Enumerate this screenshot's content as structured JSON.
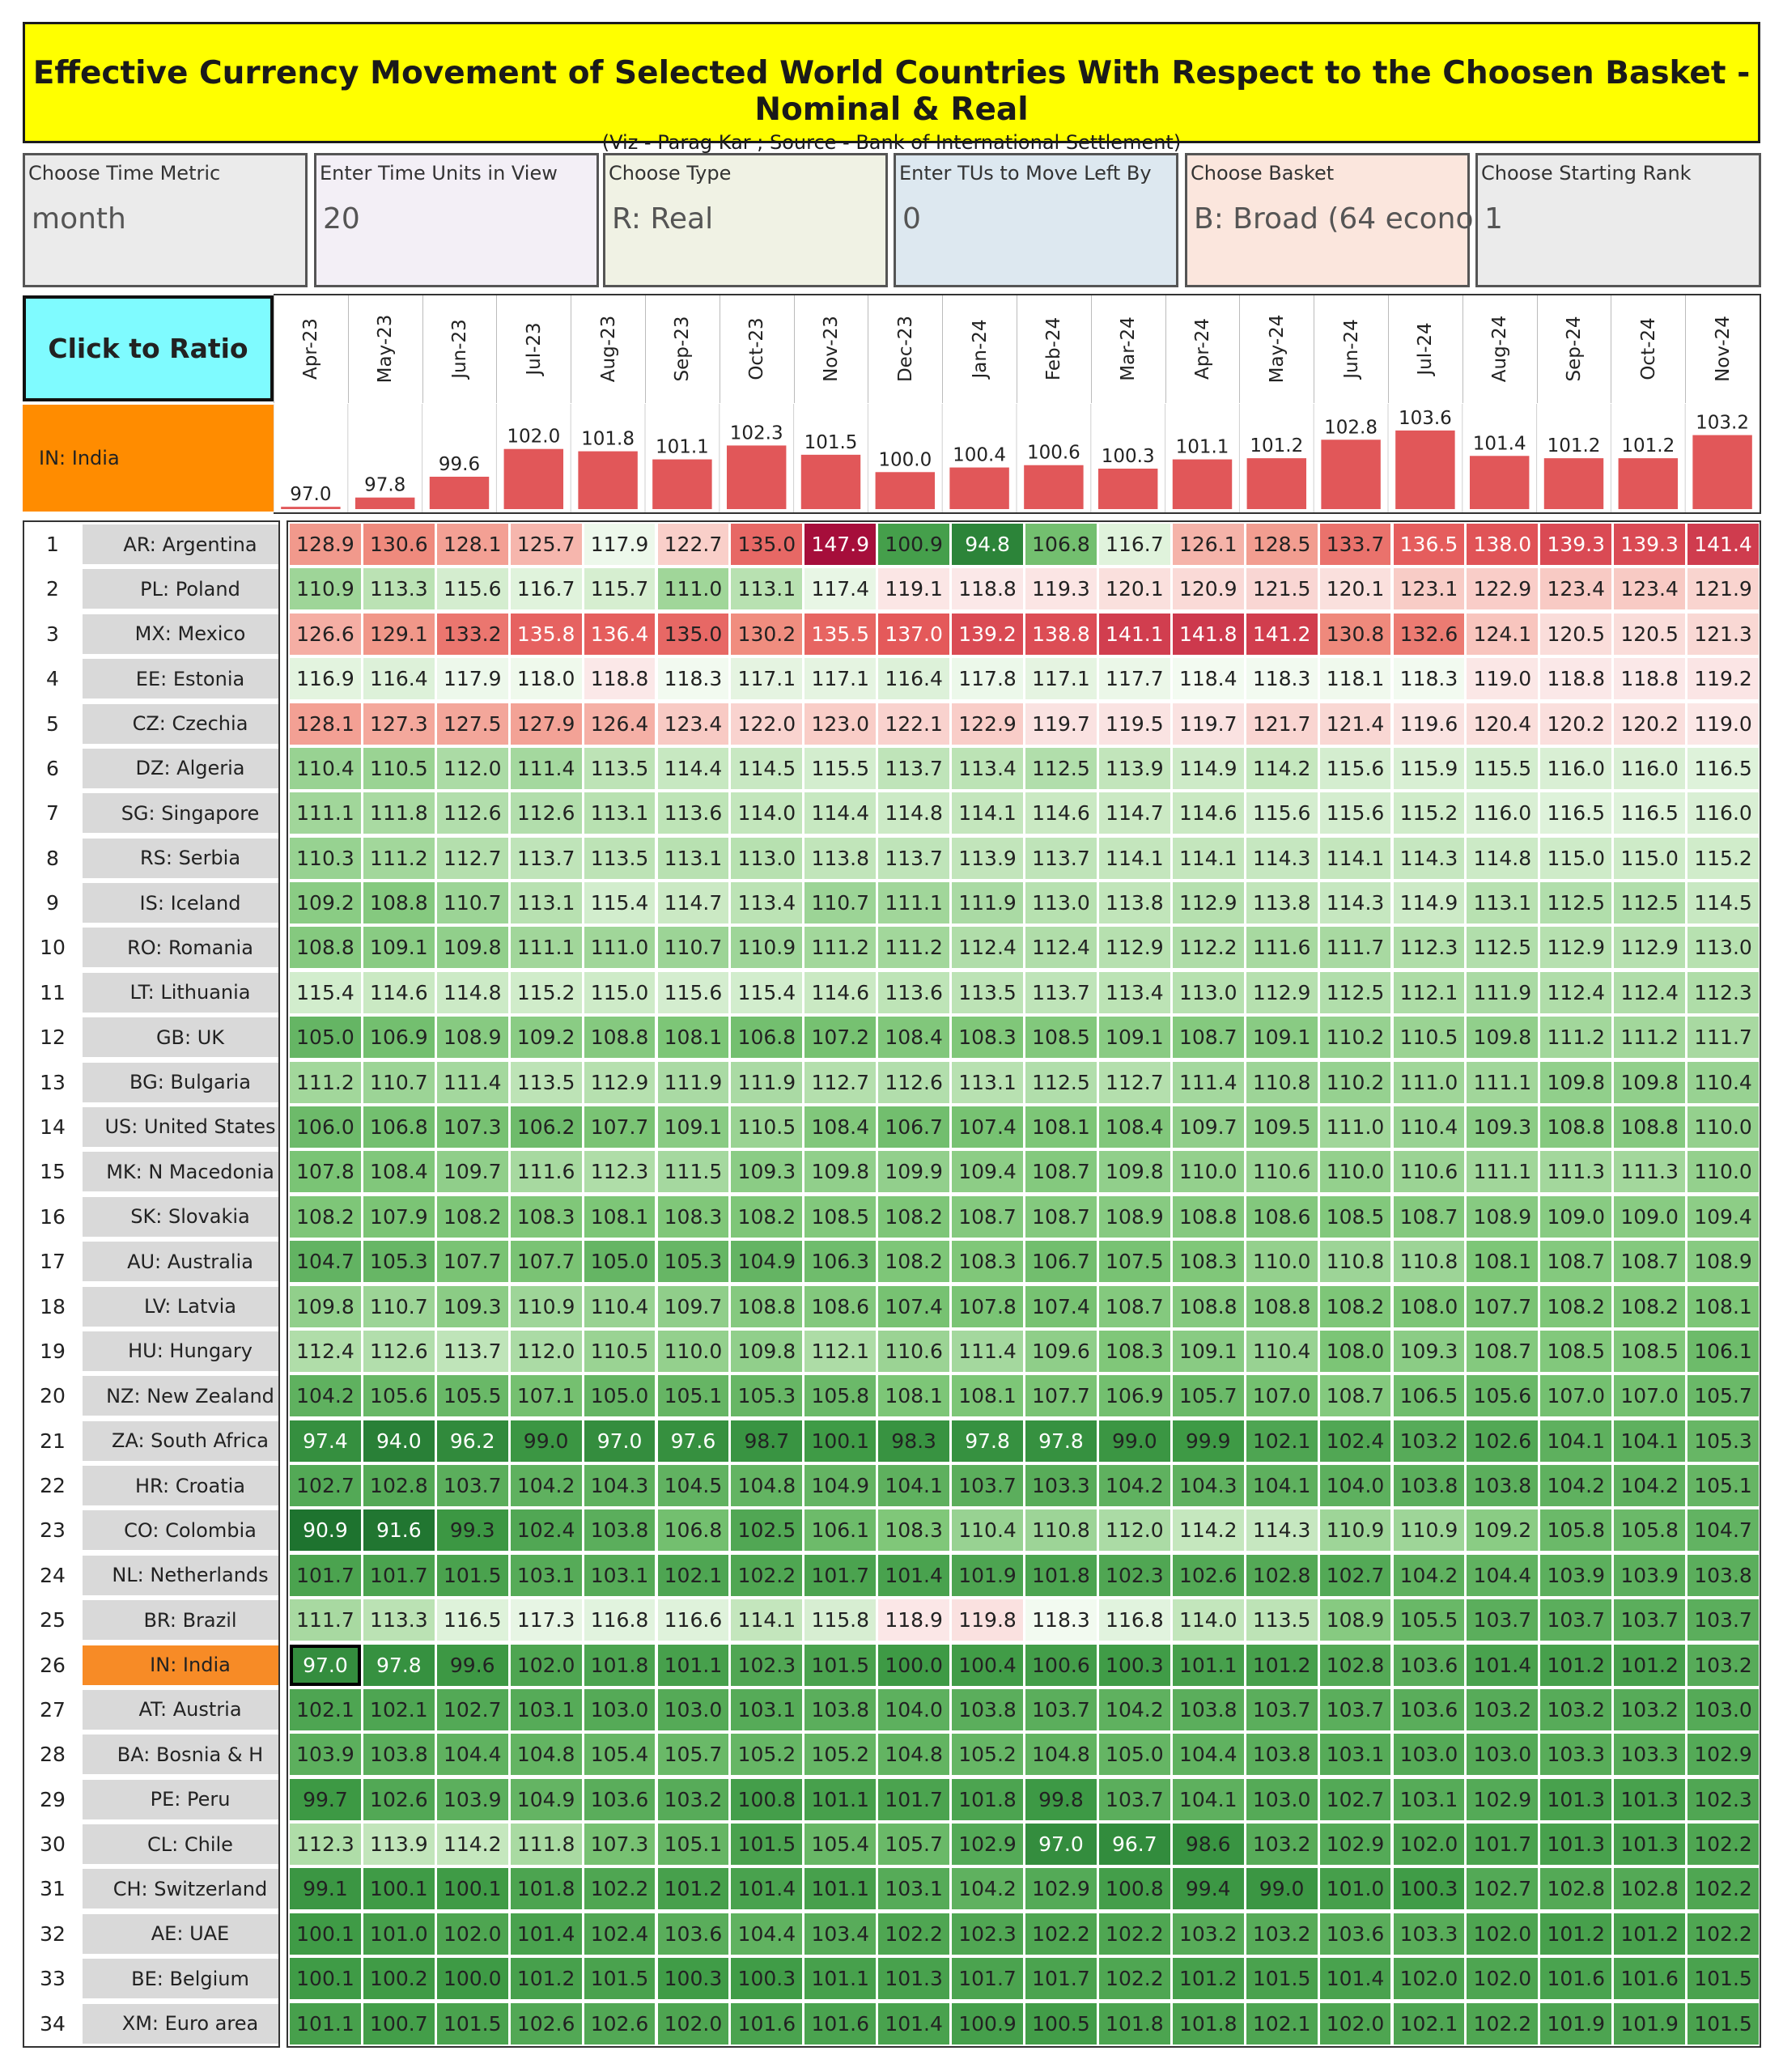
{
  "title": "Effective Currency Movement of Selected World Countries With Respect to the Choosen Basket - Nominal & Real",
  "subtitle": "(Viz - Parag Kar ; Source - Bank of International Settlement)",
  "controls": [
    {
      "label": "Choose Time Metric",
      "value": "month",
      "bg": "#ebebeb"
    },
    {
      "label": "Enter Time Units in View",
      "value": "20",
      "bg": "#f3eff6"
    },
    {
      "label": "Choose Type",
      "value": "R: Real",
      "bg": "#f0f2e4"
    },
    {
      "label": "Enter TUs to Move Left By",
      "value": "0",
      "bg": "#dde8f0"
    },
    {
      "label": "Choose Basket",
      "value": "B: Broad (64 econo..",
      "bg": "#fbe6dd"
    },
    {
      "label": "Choose Starting Rank",
      "value": "1",
      "bg": "#ebebeb"
    }
  ],
  "ratio_button": "Click to Ratio",
  "highlight_country": "IN: India",
  "months": [
    "Apr-23",
    "May-23",
    "Jun-23",
    "Jul-23",
    "Aug-23",
    "Sep-23",
    "Oct-23",
    "Nov-23",
    "Dec-23",
    "Jan-24",
    "Feb-24",
    "Mar-24",
    "Apr-24",
    "May-24",
    "Jun-24",
    "Jul-24",
    "Aug-24",
    "Sep-24",
    "Oct-24",
    "Nov-24"
  ],
  "colors": {
    "bar": "#e15759",
    "low_red": "#a50026",
    "mid": "#ffffff",
    "green": "#1e7a33",
    "highlight": "#f78b26"
  },
  "chart_data": {
    "type": "bar",
    "categories": [
      "Apr-23",
      "May-23",
      "Jun-23",
      "Jul-23",
      "Aug-23",
      "Sep-23",
      "Oct-23",
      "Nov-23",
      "Dec-23",
      "Jan-24",
      "Feb-24",
      "Mar-24",
      "Apr-24",
      "May-24",
      "Jun-24",
      "Jul-24",
      "Aug-24",
      "Sep-24",
      "Oct-24",
      "Nov-24"
    ],
    "series": [
      {
        "name": "IN: India",
        "values": [
          97.0,
          97.8,
          99.6,
          102.0,
          101.8,
          101.1,
          102.3,
          101.5,
          100.0,
          100.4,
          100.6,
          100.3,
          101.1,
          101.2,
          102.8,
          103.6,
          101.4,
          101.2,
          101.2,
          103.2
        ]
      }
    ],
    "ylim": [
      96.8,
      103.8
    ]
  },
  "rows": [
    {
      "rank": "1",
      "country": "AR: Argentina",
      "values": [
        128.9,
        130.6,
        128.1,
        125.7,
        117.9,
        122.7,
        135.0,
        147.9,
        100.9,
        94.8,
        106.8,
        116.7,
        126.1,
        128.5,
        133.7,
        136.5,
        138.0,
        139.3,
        139.3,
        141.4
      ]
    },
    {
      "rank": "2",
      "country": "PL: Poland",
      "values": [
        110.9,
        113.3,
        115.6,
        116.7,
        115.7,
        111.0,
        113.1,
        117.4,
        119.1,
        118.8,
        119.3,
        120.1,
        120.9,
        121.5,
        120.1,
        123.1,
        122.9,
        123.4,
        123.4,
        121.9
      ]
    },
    {
      "rank": "3",
      "country": "MX: Mexico",
      "values": [
        126.6,
        129.1,
        133.2,
        135.8,
        136.4,
        135.0,
        130.2,
        135.5,
        137.0,
        139.2,
        138.8,
        141.1,
        141.8,
        141.2,
        130.8,
        132.6,
        124.1,
        120.5,
        120.5,
        121.3
      ]
    },
    {
      "rank": "4",
      "country": "EE: Estonia",
      "values": [
        116.9,
        116.4,
        117.9,
        118.0,
        118.8,
        118.3,
        117.1,
        117.1,
        116.4,
        117.8,
        117.1,
        117.7,
        118.4,
        118.3,
        118.1,
        118.3,
        119.0,
        118.8,
        118.8,
        119.2
      ]
    },
    {
      "rank": "5",
      "country": "CZ: Czechia",
      "values": [
        128.1,
        127.3,
        127.5,
        127.9,
        126.4,
        123.4,
        122.0,
        123.0,
        122.1,
        122.9,
        119.7,
        119.5,
        119.7,
        121.7,
        121.4,
        119.6,
        120.4,
        120.2,
        120.2,
        119.0
      ]
    },
    {
      "rank": "6",
      "country": "DZ: Algeria",
      "values": [
        110.4,
        110.5,
        112.0,
        111.4,
        113.5,
        114.4,
        114.5,
        115.5,
        113.7,
        113.4,
        112.5,
        113.9,
        114.9,
        114.2,
        115.6,
        115.9,
        115.5,
        116.0,
        116.0,
        116.5
      ]
    },
    {
      "rank": "7",
      "country": "SG: Singapore",
      "values": [
        111.1,
        111.8,
        112.6,
        112.6,
        113.1,
        113.6,
        114.0,
        114.4,
        114.8,
        114.1,
        114.6,
        114.7,
        114.6,
        115.6,
        115.6,
        115.2,
        116.0,
        116.5,
        116.5,
        116.0
      ]
    },
    {
      "rank": "8",
      "country": "RS: Serbia",
      "values": [
        110.3,
        111.2,
        112.7,
        113.7,
        113.5,
        113.1,
        113.0,
        113.8,
        113.7,
        113.9,
        113.7,
        114.1,
        114.1,
        114.3,
        114.1,
        114.3,
        114.8,
        115.0,
        115.0,
        115.2
      ]
    },
    {
      "rank": "9",
      "country": "IS: Iceland",
      "values": [
        109.2,
        108.8,
        110.7,
        113.1,
        115.4,
        114.7,
        113.4,
        110.7,
        111.1,
        111.9,
        113.0,
        113.8,
        112.9,
        113.8,
        114.3,
        114.9,
        113.1,
        112.5,
        112.5,
        114.5
      ]
    },
    {
      "rank": "10",
      "country": "RO: Romania",
      "values": [
        108.8,
        109.1,
        109.8,
        111.1,
        111.0,
        110.7,
        110.9,
        111.2,
        111.2,
        112.4,
        112.4,
        112.9,
        112.2,
        111.6,
        111.7,
        112.3,
        112.5,
        112.9,
        112.9,
        113.0
      ]
    },
    {
      "rank": "11",
      "country": "LT: Lithuania",
      "values": [
        115.4,
        114.6,
        114.8,
        115.2,
        115.0,
        115.6,
        115.4,
        114.6,
        113.6,
        113.5,
        113.7,
        113.4,
        113.0,
        112.9,
        112.5,
        112.1,
        111.9,
        112.4,
        112.4,
        112.3
      ]
    },
    {
      "rank": "12",
      "country": "GB: UK",
      "values": [
        105.0,
        106.9,
        108.9,
        109.2,
        108.8,
        108.1,
        106.8,
        107.2,
        108.4,
        108.3,
        108.5,
        109.1,
        108.7,
        109.1,
        110.2,
        110.5,
        109.8,
        111.2,
        111.2,
        111.7
      ]
    },
    {
      "rank": "13",
      "country": "BG: Bulgaria",
      "values": [
        111.2,
        110.7,
        111.4,
        113.5,
        112.9,
        111.9,
        111.9,
        112.7,
        112.6,
        113.1,
        112.5,
        112.7,
        111.4,
        110.8,
        110.2,
        111.0,
        111.1,
        109.8,
        109.8,
        110.4
      ]
    },
    {
      "rank": "14",
      "country": "US: United States",
      "values": [
        106.0,
        106.8,
        107.3,
        106.2,
        107.7,
        109.1,
        110.5,
        108.4,
        106.7,
        107.4,
        108.1,
        108.4,
        109.7,
        109.5,
        111.0,
        110.4,
        109.3,
        108.8,
        108.8,
        110.0
      ]
    },
    {
      "rank": "15",
      "country": "MK: N Macedonia",
      "values": [
        107.8,
        108.4,
        109.7,
        111.6,
        112.3,
        111.5,
        109.3,
        109.8,
        109.9,
        109.4,
        108.7,
        109.8,
        110.0,
        110.6,
        110.0,
        110.6,
        111.1,
        111.3,
        111.3,
        110.0
      ]
    },
    {
      "rank": "16",
      "country": "SK: Slovakia",
      "values": [
        108.2,
        107.9,
        108.2,
        108.3,
        108.1,
        108.3,
        108.2,
        108.5,
        108.2,
        108.7,
        108.7,
        108.9,
        108.8,
        108.6,
        108.5,
        108.7,
        108.9,
        109.0,
        109.0,
        109.4
      ]
    },
    {
      "rank": "17",
      "country": "AU: Australia",
      "values": [
        104.7,
        105.3,
        107.7,
        107.7,
        105.0,
        105.3,
        104.9,
        106.3,
        108.2,
        108.3,
        106.7,
        107.5,
        108.3,
        110.0,
        110.8,
        110.8,
        108.1,
        108.7,
        108.7,
        108.9
      ]
    },
    {
      "rank": "18",
      "country": "LV: Latvia",
      "values": [
        109.8,
        110.7,
        109.3,
        110.9,
        110.4,
        109.7,
        108.8,
        108.6,
        107.4,
        107.8,
        107.4,
        108.7,
        108.8,
        108.8,
        108.2,
        108.0,
        107.7,
        108.2,
        108.2,
        108.1
      ]
    },
    {
      "rank": "19",
      "country": "HU: Hungary",
      "values": [
        112.4,
        112.6,
        113.7,
        112.0,
        110.5,
        110.0,
        109.8,
        112.1,
        110.6,
        111.4,
        109.6,
        108.3,
        109.1,
        110.4,
        108.0,
        109.3,
        108.7,
        108.5,
        108.5,
        106.1
      ]
    },
    {
      "rank": "20",
      "country": "NZ: New Zealand",
      "values": [
        104.2,
        105.6,
        105.5,
        107.1,
        105.0,
        105.1,
        105.3,
        105.8,
        108.1,
        108.1,
        107.7,
        106.9,
        105.7,
        107.0,
        108.7,
        106.5,
        105.6,
        107.0,
        107.0,
        105.7
      ]
    },
    {
      "rank": "21",
      "country": "ZA: South Africa",
      "values": [
        97.4,
        94.0,
        96.2,
        99.0,
        97.0,
        97.6,
        98.7,
        100.1,
        98.3,
        97.8,
        97.8,
        99.0,
        99.9,
        102.1,
        102.4,
        103.2,
        102.6,
        104.1,
        104.1,
        105.3
      ]
    },
    {
      "rank": "22",
      "country": "HR: Croatia",
      "values": [
        102.7,
        102.8,
        103.7,
        104.2,
        104.3,
        104.5,
        104.8,
        104.9,
        104.1,
        103.7,
        103.3,
        104.2,
        104.3,
        104.1,
        104.0,
        103.8,
        103.8,
        104.2,
        104.2,
        105.1
      ]
    },
    {
      "rank": "23",
      "country": "CO: Colombia",
      "values": [
        90.9,
        91.6,
        99.3,
        102.4,
        103.8,
        106.8,
        102.5,
        106.1,
        108.3,
        110.4,
        110.8,
        112.0,
        114.2,
        114.3,
        110.9,
        110.9,
        109.2,
        105.8,
        105.8,
        104.7
      ]
    },
    {
      "rank": "24",
      "country": "NL: Netherlands",
      "values": [
        101.7,
        101.7,
        101.5,
        103.1,
        103.1,
        102.1,
        102.2,
        101.7,
        101.4,
        101.9,
        101.8,
        102.3,
        102.6,
        102.8,
        102.7,
        104.2,
        104.4,
        103.9,
        103.9,
        103.8
      ]
    },
    {
      "rank": "25",
      "country": "BR: Brazil",
      "values": [
        111.7,
        113.3,
        116.5,
        117.3,
        116.8,
        116.6,
        114.1,
        115.8,
        118.9,
        119.8,
        118.3,
        116.8,
        114.0,
        113.5,
        108.9,
        105.5,
        103.7,
        103.7,
        103.7,
        103.7
      ]
    },
    {
      "rank": "26",
      "country": "IN: India",
      "values": [
        97.0,
        97.8,
        99.6,
        102.0,
        101.8,
        101.1,
        102.3,
        101.5,
        100.0,
        100.4,
        100.6,
        100.3,
        101.1,
        101.2,
        102.8,
        103.6,
        101.4,
        101.2,
        101.2,
        103.2
      ]
    },
    {
      "rank": "27",
      "country": "AT: Austria",
      "values": [
        102.1,
        102.1,
        102.7,
        103.1,
        103.0,
        103.0,
        103.1,
        103.8,
        104.0,
        103.8,
        103.7,
        104.2,
        103.8,
        103.7,
        103.7,
        103.6,
        103.2,
        103.2,
        103.2,
        103.0
      ]
    },
    {
      "rank": "28",
      "country": "BA: Bosnia & H",
      "values": [
        103.9,
        103.8,
        104.4,
        104.8,
        105.4,
        105.7,
        105.2,
        105.2,
        104.8,
        105.2,
        104.8,
        105.0,
        104.4,
        103.8,
        103.1,
        103.0,
        103.0,
        103.3,
        103.3,
        102.9
      ]
    },
    {
      "rank": "29",
      "country": "PE: Peru",
      "values": [
        99.7,
        102.6,
        103.9,
        104.9,
        103.6,
        103.2,
        100.8,
        101.1,
        101.7,
        101.8,
        99.8,
        103.7,
        104.1,
        103.0,
        102.7,
        103.1,
        102.9,
        101.3,
        101.3,
        102.3
      ]
    },
    {
      "rank": "30",
      "country": "CL: Chile",
      "values": [
        112.3,
        113.9,
        114.2,
        111.8,
        107.3,
        105.1,
        101.5,
        105.4,
        105.7,
        102.9,
        97.0,
        96.7,
        98.6,
        103.2,
        102.9,
        102.0,
        101.7,
        101.3,
        101.3,
        102.2
      ]
    },
    {
      "rank": "31",
      "country": "CH: Switzerland",
      "values": [
        99.1,
        100.1,
        100.1,
        101.8,
        102.2,
        101.2,
        101.4,
        101.1,
        103.1,
        104.2,
        102.9,
        100.8,
        99.4,
        99.0,
        101.0,
        100.3,
        102.7,
        102.8,
        102.8,
        102.2
      ]
    },
    {
      "rank": "32",
      "country": "AE: UAE",
      "values": [
        100.1,
        101.0,
        102.0,
        101.4,
        102.4,
        103.6,
        104.4,
        103.4,
        102.2,
        102.3,
        102.2,
        102.2,
        103.2,
        103.2,
        103.6,
        103.3,
        102.0,
        101.2,
        101.2,
        102.2
      ]
    },
    {
      "rank": "33",
      "country": "BE: Belgium",
      "values": [
        100.1,
        100.2,
        100.0,
        101.2,
        101.5,
        100.3,
        100.3,
        101.1,
        101.3,
        101.7,
        101.7,
        102.2,
        101.2,
        101.5,
        101.4,
        102.0,
        102.0,
        101.6,
        101.6,
        101.5
      ]
    },
    {
      "rank": "34",
      "country": "XM: Euro area",
      "values": [
        101.1,
        100.7,
        101.5,
        102.6,
        102.6,
        102.0,
        101.6,
        101.6,
        101.4,
        100.9,
        100.5,
        101.8,
        101.8,
        102.1,
        102.0,
        102.1,
        102.2,
        101.9,
        101.9,
        101.5
      ]
    }
  ]
}
